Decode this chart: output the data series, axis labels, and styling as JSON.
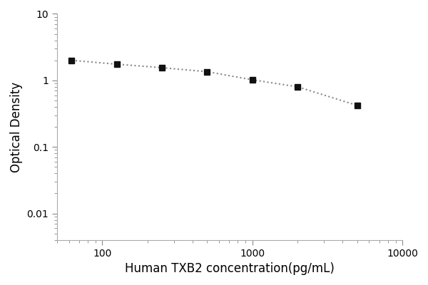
{
  "x_data": [
    62.5,
    125,
    250,
    500,
    1000,
    2000,
    5000
  ],
  "y_data": [
    2.0,
    1.75,
    1.55,
    1.35,
    1.02,
    0.8,
    0.42
  ],
  "xlim": [
    50,
    10000
  ],
  "ylim": [
    0.004,
    10
  ],
  "xlabel": "Human TXB2 concentration(pg/mL)",
  "ylabel": "Optical Density",
  "line_color": "#888888",
  "marker_color": "#111111",
  "background_color": "#ffffff",
  "marker": "s",
  "marker_size": 6,
  "line_style": ":",
  "line_width": 1.5,
  "xlabel_fontsize": 12,
  "ylabel_fontsize": 12,
  "tick_fontsize": 10,
  "spine_color": "#aaaaaa",
  "xticks": [
    100,
    1000,
    10000
  ],
  "yticks": [
    0.01,
    0.1,
    1,
    10
  ]
}
